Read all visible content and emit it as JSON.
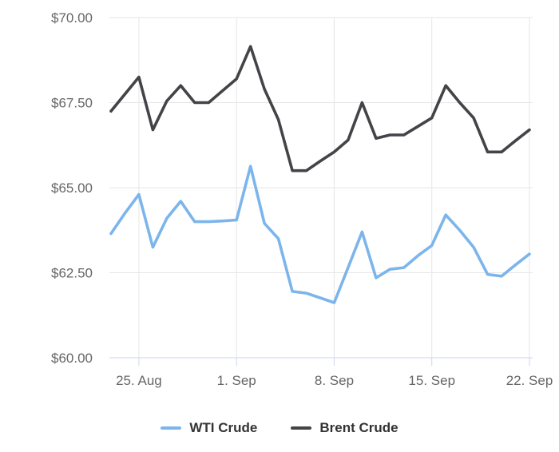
{
  "chart_data": {
    "type": "line",
    "title": "",
    "xlabel": "",
    "ylabel": "",
    "ylim": [
      60,
      70
    ],
    "grid": true,
    "legend_position": "bottom",
    "currency_prefix": "$",
    "x": [
      "23. Aug",
      "24. Aug",
      "25. Aug",
      "26. Aug",
      "27. Aug",
      "28. Aug",
      "29. Aug",
      "30. Aug",
      "31. Aug",
      "1. Sep",
      "2. Sep",
      "3. Sep",
      "4. Sep",
      "5. Sep",
      "6. Sep",
      "7. Sep",
      "8. Sep",
      "9. Sep",
      "10. Sep",
      "11. Sep",
      "12. Sep",
      "13. Sep",
      "14. Sep",
      "15. Sep",
      "16. Sep",
      "17. Sep",
      "18. Sep",
      "19. Sep",
      "20. Sep",
      "21. Sep",
      "22. Sep"
    ],
    "xticks": [
      {
        "index": 2,
        "label": "25. Aug"
      },
      {
        "index": 9,
        "label": "1. Sep"
      },
      {
        "index": 16,
        "label": "8. Sep"
      },
      {
        "index": 23,
        "label": "15. Sep"
      },
      {
        "index": 30,
        "label": "22. Sep"
      }
    ],
    "yticks": [
      {
        "value": 60.0,
        "label": "$60.00"
      },
      {
        "value": 62.5,
        "label": "$62.50"
      },
      {
        "value": 65.0,
        "label": "$65.00"
      },
      {
        "value": 67.5,
        "label": "$67.50"
      },
      {
        "value": 70.0,
        "label": "$70.00"
      }
    ],
    "series": [
      {
        "name": "WTI Crude",
        "color": "#7cb5ec",
        "values": [
          63.65,
          64.25,
          64.8,
          63.25,
          64.1,
          64.6,
          64.0,
          64.0,
          64.02,
          64.05,
          65.63,
          63.95,
          63.5,
          61.95,
          61.9,
          61.76,
          61.62,
          62.65,
          63.7,
          62.35,
          62.6,
          62.65,
          63.0,
          63.3,
          64.2,
          63.75,
          63.25,
          62.45,
          62.4,
          62.73,
          63.05
        ]
      },
      {
        "name": "Brent Crude",
        "color": "#434348",
        "values": [
          67.25,
          67.75,
          68.25,
          66.7,
          67.55,
          68.0,
          67.5,
          67.5,
          67.85,
          68.2,
          69.15,
          67.9,
          67.0,
          65.5,
          65.5,
          65.78,
          66.05,
          66.4,
          67.5,
          66.45,
          66.55,
          66.55,
          66.8,
          67.05,
          68.0,
          67.5,
          67.05,
          66.05,
          66.05,
          66.38,
          66.7
        ]
      }
    ],
    "colors": {
      "grid_line": "#e6e6e6",
      "axis_line": "#ccd6eb",
      "tick_mark": "#ccd6eb",
      "axis_label_text": "#666666",
      "legend_text": "#333333",
      "background": "#ffffff"
    }
  }
}
